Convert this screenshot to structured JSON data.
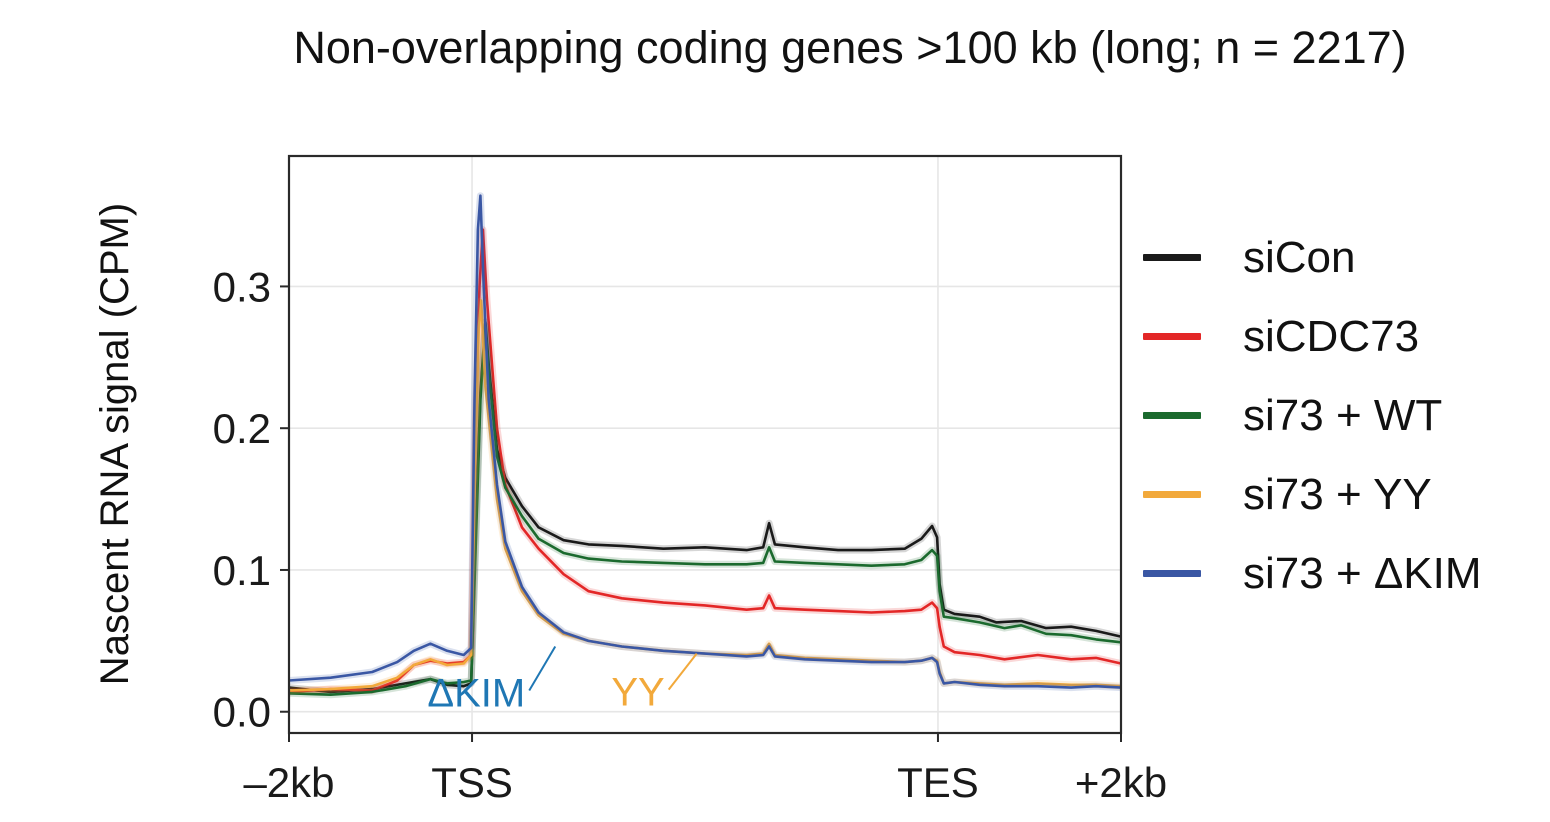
{
  "chart_data": {
    "type": "line",
    "title": "Non-overlapping coding genes >100 kb (long; n = 2217)",
    "xlabel": "",
    "ylabel": "Nascent RNA signal (CPM)",
    "ylim": [
      -0.015,
      0.392
    ],
    "yticks": [
      0.0,
      0.1,
      0.2,
      0.3
    ],
    "ytick_labels": [
      "0.0",
      "0.1",
      "0.2",
      "0.3"
    ],
    "xlim": [
      0,
      100
    ],
    "xtick_positions": [
      0,
      22,
      78,
      100
    ],
    "xtick_labels": [
      "–2kb",
      "TSS",
      "TES",
      "+2kb"
    ],
    "grid": true,
    "legend_position": "right",
    "series": [
      {
        "name": "siCon",
        "color": "#1a1a1a",
        "points": [
          [
            0,
            0.017
          ],
          [
            5,
            0.014
          ],
          [
            10,
            0.016
          ],
          [
            14,
            0.02
          ],
          [
            17,
            0.023
          ],
          [
            19,
            0.019
          ],
          [
            21,
            0.018
          ],
          [
            21.9,
            0.02
          ],
          [
            22.4,
            0.12
          ],
          [
            23,
            0.225
          ],
          [
            23.6,
            0.275
          ],
          [
            24,
            0.245
          ],
          [
            25,
            0.185
          ],
          [
            26,
            0.165
          ],
          [
            28,
            0.145
          ],
          [
            30,
            0.13
          ],
          [
            33,
            0.121
          ],
          [
            36,
            0.118
          ],
          [
            40,
            0.117
          ],
          [
            45,
            0.115
          ],
          [
            50,
            0.116
          ],
          [
            55,
            0.114
          ],
          [
            57,
            0.116
          ],
          [
            57.7,
            0.133
          ],
          [
            58.4,
            0.118
          ],
          [
            62,
            0.116
          ],
          [
            66,
            0.114
          ],
          [
            70,
            0.114
          ],
          [
            74,
            0.115
          ],
          [
            76,
            0.122
          ],
          [
            77.3,
            0.131
          ],
          [
            77.9,
            0.123
          ],
          [
            78.2,
            0.09
          ],
          [
            78.7,
            0.072
          ],
          [
            80,
            0.069
          ],
          [
            83,
            0.067
          ],
          [
            85,
            0.063
          ],
          [
            88,
            0.064
          ],
          [
            91,
            0.059
          ],
          [
            94,
            0.06
          ],
          [
            97,
            0.057
          ],
          [
            100,
            0.053
          ]
        ]
      },
      {
        "name": "siCDC73",
        "color": "#e32727",
        "points": [
          [
            0,
            0.014
          ],
          [
            5,
            0.016
          ],
          [
            10,
            0.015
          ],
          [
            13,
            0.022
          ],
          [
            15,
            0.033
          ],
          [
            17,
            0.036
          ],
          [
            19,
            0.034
          ],
          [
            21,
            0.035
          ],
          [
            21.9,
            0.04
          ],
          [
            22.4,
            0.2
          ],
          [
            22.9,
            0.3
          ],
          [
            23.3,
            0.34
          ],
          [
            23.8,
            0.29
          ],
          [
            25,
            0.2
          ],
          [
            26,
            0.16
          ],
          [
            28,
            0.13
          ],
          [
            30,
            0.115
          ],
          [
            33,
            0.097
          ],
          [
            36,
            0.085
          ],
          [
            40,
            0.08
          ],
          [
            45,
            0.077
          ],
          [
            50,
            0.075
          ],
          [
            55,
            0.072
          ],
          [
            57,
            0.073
          ],
          [
            57.7,
            0.082
          ],
          [
            58.4,
            0.073
          ],
          [
            62,
            0.072
          ],
          [
            66,
            0.071
          ],
          [
            70,
            0.07
          ],
          [
            74,
            0.071
          ],
          [
            76,
            0.072
          ],
          [
            77.3,
            0.077
          ],
          [
            77.9,
            0.073
          ],
          [
            78.2,
            0.06
          ],
          [
            78.7,
            0.046
          ],
          [
            80,
            0.042
          ],
          [
            83,
            0.04
          ],
          [
            86,
            0.037
          ],
          [
            90,
            0.04
          ],
          [
            94,
            0.037
          ],
          [
            97,
            0.038
          ],
          [
            100,
            0.034
          ]
        ]
      },
      {
        "name": "si73 + WT",
        "color": "#1b6a2e",
        "points": [
          [
            0,
            0.013
          ],
          [
            5,
            0.012
          ],
          [
            10,
            0.014
          ],
          [
            14,
            0.018
          ],
          [
            17,
            0.023
          ],
          [
            19,
            0.02
          ],
          [
            21,
            0.021
          ],
          [
            21.9,
            0.022
          ],
          [
            22.4,
            0.11
          ],
          [
            23,
            0.22
          ],
          [
            23.6,
            0.272
          ],
          [
            24,
            0.24
          ],
          [
            25,
            0.18
          ],
          [
            26,
            0.158
          ],
          [
            28,
            0.138
          ],
          [
            30,
            0.122
          ],
          [
            33,
            0.112
          ],
          [
            36,
            0.108
          ],
          [
            40,
            0.106
          ],
          [
            45,
            0.105
          ],
          [
            50,
            0.104
          ],
          [
            55,
            0.104
          ],
          [
            57,
            0.105
          ],
          [
            57.7,
            0.116
          ],
          [
            58.4,
            0.106
          ],
          [
            62,
            0.105
          ],
          [
            66,
            0.104
          ],
          [
            70,
            0.103
          ],
          [
            74,
            0.104
          ],
          [
            76,
            0.107
          ],
          [
            77.3,
            0.114
          ],
          [
            77.9,
            0.11
          ],
          [
            78.2,
            0.085
          ],
          [
            78.7,
            0.067
          ],
          [
            80,
            0.066
          ],
          [
            83,
            0.063
          ],
          [
            86,
            0.059
          ],
          [
            88,
            0.061
          ],
          [
            91,
            0.055
          ],
          [
            94,
            0.054
          ],
          [
            97,
            0.051
          ],
          [
            100,
            0.049
          ]
        ]
      },
      {
        "name": "si73 + YY",
        "color": "#f2a93b",
        "points": [
          [
            0,
            0.015
          ],
          [
            5,
            0.016
          ],
          [
            10,
            0.018
          ],
          [
            13,
            0.024
          ],
          [
            15,
            0.033
          ],
          [
            17,
            0.037
          ],
          [
            19,
            0.033
          ],
          [
            21,
            0.034
          ],
          [
            21.9,
            0.04
          ],
          [
            22.4,
            0.18
          ],
          [
            22.8,
            0.27
          ],
          [
            23.1,
            0.29
          ],
          [
            23.6,
            0.23
          ],
          [
            25,
            0.15
          ],
          [
            26,
            0.115
          ],
          [
            28,
            0.085
          ],
          [
            30,
            0.068
          ],
          [
            33,
            0.055
          ],
          [
            36,
            0.05
          ],
          [
            40,
            0.046
          ],
          [
            45,
            0.043
          ],
          [
            50,
            0.041
          ],
          [
            55,
            0.04
          ],
          [
            57,
            0.041
          ],
          [
            57.7,
            0.048
          ],
          [
            58.4,
            0.04
          ],
          [
            62,
            0.038
          ],
          [
            66,
            0.037
          ],
          [
            70,
            0.036
          ],
          [
            74,
            0.035
          ],
          [
            76,
            0.036
          ],
          [
            77.3,
            0.038
          ],
          [
            77.9,
            0.036
          ],
          [
            78.2,
            0.028
          ],
          [
            78.7,
            0.02
          ],
          [
            80,
            0.021
          ],
          [
            83,
            0.02
          ],
          [
            86,
            0.019
          ],
          [
            90,
            0.02
          ],
          [
            94,
            0.019
          ],
          [
            97,
            0.019
          ],
          [
            100,
            0.018
          ]
        ]
      },
      {
        "name": "si73 + ΔKIM",
        "color": "#3a57a4",
        "points": [
          [
            0,
            0.022
          ],
          [
            5,
            0.024
          ],
          [
            10,
            0.028
          ],
          [
            13,
            0.035
          ],
          [
            15,
            0.043
          ],
          [
            17,
            0.048
          ],
          [
            19,
            0.043
          ],
          [
            21,
            0.04
          ],
          [
            21.9,
            0.045
          ],
          [
            22.3,
            0.22
          ],
          [
            22.7,
            0.34
          ],
          [
            23.0,
            0.364
          ],
          [
            23.4,
            0.3
          ],
          [
            24,
            0.22
          ],
          [
            25,
            0.16
          ],
          [
            26,
            0.12
          ],
          [
            28,
            0.088
          ],
          [
            30,
            0.07
          ],
          [
            33,
            0.056
          ],
          [
            36,
            0.05
          ],
          [
            40,
            0.046
          ],
          [
            45,
            0.043
          ],
          [
            50,
            0.041
          ],
          [
            55,
            0.039
          ],
          [
            57,
            0.04
          ],
          [
            57.7,
            0.046
          ],
          [
            58.4,
            0.039
          ],
          [
            62,
            0.037
          ],
          [
            66,
            0.036
          ],
          [
            70,
            0.035
          ],
          [
            74,
            0.035
          ],
          [
            76,
            0.036
          ],
          [
            77.3,
            0.038
          ],
          [
            77.9,
            0.035
          ],
          [
            78.2,
            0.027
          ],
          [
            78.7,
            0.02
          ],
          [
            80,
            0.021
          ],
          [
            83,
            0.019
          ],
          [
            86,
            0.018
          ],
          [
            90,
            0.018
          ],
          [
            94,
            0.017
          ],
          [
            97,
            0.018
          ],
          [
            100,
            0.017
          ]
        ]
      }
    ],
    "annotations": [
      {
        "text": "ΔKIM",
        "color": "#1f77b4",
        "x": 32,
        "y": 0.046
      },
      {
        "text": "YY",
        "color": "#f2a93b",
        "x": 49,
        "y": 0.041
      }
    ]
  }
}
